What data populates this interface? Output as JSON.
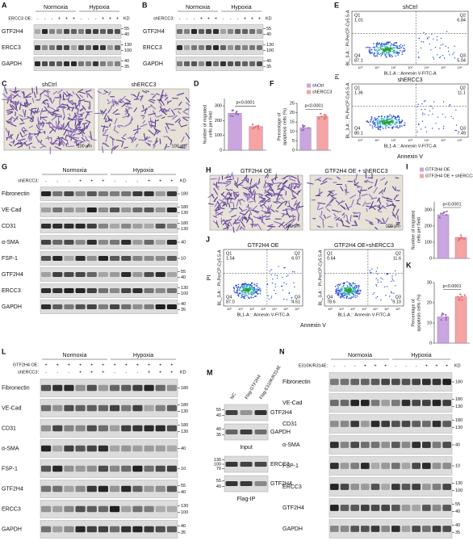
{
  "panels": {
    "A": {
      "letter": "A",
      "conditions": [
        "Normoxia",
        "Hypoxia"
      ],
      "unit": "KD",
      "treatments": [
        {
          "label": "ERCC3 OE:",
          "signs": [
            "-",
            "-",
            "-",
            "+",
            "+",
            "+",
            "-",
            "-",
            "-",
            "+",
            "+",
            "+"
          ]
        }
      ],
      "rows": [
        {
          "name": "GTF2H4",
          "markers": [
            55,
            40
          ]
        },
        {
          "name": "ERCC3",
          "markers": [
            130,
            100
          ]
        },
        {
          "name": "GAPDH",
          "markers": [
            40,
            35
          ]
        }
      ]
    },
    "B": {
      "letter": "B",
      "conditions": [
        "Normoxia",
        "Hypoxia"
      ],
      "unit": "KD",
      "treatments": [
        {
          "label": "shERCC3:",
          "signs": [
            "-",
            "-",
            "-",
            "+",
            "+",
            "+",
            "-",
            "-",
            "-",
            "+",
            "+",
            "+"
          ]
        }
      ],
      "rows": [
        {
          "name": "GTF2H4",
          "markers": [
            55,
            40
          ]
        },
        {
          "name": "ERCC3",
          "markers": [
            130,
            100
          ]
        },
        {
          "name": "GAPDH",
          "markers": [
            40,
            35
          ]
        }
      ]
    },
    "G": {
      "letter": "G",
      "conditions": [
        "Normoxia",
        "Hypoxia"
      ],
      "unit": "KD",
      "treatments": [
        {
          "label": "shERCC3:",
          "signs": [
            "-",
            "-",
            "-",
            "+",
            "+",
            "+",
            "-",
            "-",
            "-",
            "+",
            "+",
            "+"
          ]
        }
      ],
      "rows": [
        {
          "name": "Fibronectin",
          "markers": [
            180
          ]
        },
        {
          "name": "VE-Cad",
          "markers": [
            180,
            130
          ]
        },
        {
          "name": "CD31",
          "markers": [
            180,
            130
          ]
        },
        {
          "name": "α-SMA",
          "markers": [
            40
          ]
        },
        {
          "name": "FSP-1",
          "markers": [
            10
          ]
        },
        {
          "name": "GTF2H4",
          "markers": [
            55,
            40
          ]
        },
        {
          "name": "ERCC3",
          "markers": [
            130,
            100
          ]
        },
        {
          "name": "GAPDH",
          "markers": [
            40,
            35
          ]
        }
      ]
    },
    "L": {
      "letter": "L",
      "conditions": [
        "Normoxia",
        "Hypoxia"
      ],
      "unit": "KD",
      "treatments": [
        {
          "label": "GTF2H4 OE:",
          "signs": [
            "+",
            "+",
            "+",
            "+",
            "+",
            "+",
            "+",
            "+",
            "+",
            "+",
            "+",
            "+"
          ]
        },
        {
          "label": "shERCC3:",
          "signs": [
            "-",
            "-",
            "-",
            "+",
            "+",
            "+",
            "-",
            "-",
            "-",
            "+",
            "+",
            "+"
          ]
        }
      ],
      "rows": [
        {
          "name": "Fibronectin",
          "markers": [
            180
          ]
        },
        {
          "name": "VE-Cad",
          "markers": [
            180,
            130
          ]
        },
        {
          "name": "CD31",
          "markers": [
            180,
            130
          ]
        },
        {
          "name": "α-SMA",
          "markers": [
            40
          ]
        },
        {
          "name": "FSP-1",
          "markers": [
            10
          ]
        },
        {
          "name": "GTF2H4",
          "markers": [
            55,
            40
          ]
        },
        {
          "name": "ERCC3",
          "markers": [
            130,
            100
          ]
        },
        {
          "name": "GAPDH",
          "markers": [
            40,
            35
          ]
        }
      ]
    },
    "N": {
      "letter": "N",
      "conditions": [
        "Normoxia",
        "Hypoxia"
      ],
      "unit": "KD",
      "treatments": [
        {
          "label": "E310K/R314E:",
          "signs": [
            "-",
            "-",
            "-",
            "+",
            "+",
            "+",
            "-",
            "-",
            "-",
            "+",
            "+",
            "+"
          ]
        }
      ],
      "rows": [
        {
          "name": "Fibronectin",
          "markers": [
            180
          ]
        },
        {
          "name": "VE-Cad",
          "markers": [
            180,
            130
          ]
        },
        {
          "name": "CD31",
          "markers": [
            180,
            130
          ]
        },
        {
          "name": "α-SMA",
          "markers": [
            40
          ]
        },
        {
          "name": "FSP-1",
          "markers": [
            10
          ]
        },
        {
          "name": "ERCC3",
          "markers": [
            130,
            100
          ]
        },
        {
          "name": "GTF2H4",
          "markers": [
            55,
            40
          ]
        },
        {
          "name": "GAPDH",
          "markers": [
            40,
            35
          ]
        }
      ]
    }
  },
  "M": {
    "letter": "M",
    "lanes": [
      "NC",
      "Flag-GTF2H4",
      "Flag-E310K/R314E"
    ],
    "groups": [
      {
        "label": "Input",
        "rows": [
          {
            "name": "GTF2H4",
            "markers": [
              55,
              40
            ]
          },
          {
            "name": "GAPDH",
            "markers": [
              40,
              35
            ]
          }
        ]
      },
      {
        "label": "Flag-IP",
        "rows": [
          {
            "name": "ERCC3",
            "markers": [
              130,
              100,
              70
            ]
          },
          {
            "name": "GTF2H4",
            "markers": [
              55,
              40
            ]
          }
        ]
      }
    ]
  },
  "micrographs": {
    "C": {
      "letter": "C",
      "labels": [
        "shCtrl",
        "shERCC3"
      ],
      "scale": "100 μm"
    },
    "H": {
      "letter": "H",
      "labels": [
        "GTF2H4 OE",
        "GTF2H4 OE + shERCC3"
      ],
      "scale": "100 μm"
    }
  },
  "flow": {
    "axis_ticks": [
      "10⁰",
      "10¹",
      "10²",
      "10³",
      "10⁴",
      "10⁵",
      "10⁶"
    ],
    "xlabel": "BL1-A :: Annexin V-FITC-A",
    "ylabel": "BL_3-A :: PI-PerCP-Cy5.5-A",
    "outer_x": "Annexin V",
    "outer_y": "PI",
    "E": {
      "letter": "E",
      "plots": [
        {
          "title": "shCtrl",
          "q": [
            [
              "Q1",
              "1.01"
            ],
            [
              "Q2",
              "6.84"
            ],
            [
              "Q4",
              "87.1"
            ],
            [
              "Q3",
              "5.04"
            ]
          ]
        },
        {
          "title": "shERCC3",
          "q": [
            [
              "Q1",
              "1.36"
            ],
            [
              "Q2",
              "11.1"
            ],
            [
              "Q4",
              "80.1"
            ],
            [
              "Q3",
              "7.49"
            ]
          ]
        }
      ]
    },
    "J": {
      "letter": "J",
      "plots": [
        {
          "title": "GTF2H4 OE",
          "q": [
            [
              "Q1",
              "1.54"
            ],
            [
              "Q2",
              "6.97"
            ],
            [
              "Q4",
              "87.0"
            ],
            [
              "Q3",
              "4.51"
            ]
          ]
        },
        {
          "title": "GTF2H4 OE+shERCC3",
          "q": [
            [
              "Q1",
              "0.64"
            ],
            [
              "Q2",
              "11.6"
            ],
            [
              "Q4",
              "78.6"
            ],
            [
              "Q3",
              "9.10"
            ]
          ]
        }
      ]
    }
  },
  "charts": {
    "D": {
      "letter": "D",
      "type": "bar",
      "ylabel": [
        "Number of migrated",
        "cells per field"
      ],
      "pvalue": "p<0.0001",
      "categories": [
        "shCtrl",
        "shERCC3"
      ],
      "values": [
        250,
        160
      ],
      "colors": [
        "#c9a6e0",
        "#f5a3a3"
      ],
      "ylim": [
        0,
        350
      ],
      "yticks": [
        0,
        100,
        200,
        300
      ]
    },
    "F": {
      "letter": "F",
      "type": "bar",
      "ylabel": [
        "Percentage of",
        "apoptosis cells (%)"
      ],
      "pvalue": "p<0.0001",
      "categories": [
        "shCtrl",
        "shERCC3"
      ],
      "legend": true,
      "values": [
        12,
        18
      ],
      "colors": [
        "#c9a6e0",
        "#f5a3a3"
      ],
      "ylim": [
        0,
        25
      ],
      "yticks": [
        0,
        5,
        10,
        15,
        20,
        25
      ]
    },
    "I": {
      "letter": "I",
      "type": "bar",
      "ylabel": [
        "Number of migrated",
        "cells per field"
      ],
      "pvalue": "p<0.0001",
      "categories": [
        "GTF2H4 OE",
        "GTF2H4 OE + shERCC3"
      ],
      "legend": true,
      "values": [
        270,
        130
      ],
      "colors": [
        "#c9a6e0",
        "#f5a3a3"
      ],
      "ylim": [
        0,
        350
      ],
      "yticks": [
        0,
        100,
        200,
        300
      ]
    },
    "K": {
      "letter": "K",
      "type": "bar",
      "ylabel": [
        "Percentage of",
        "apoptosis cells (%)"
      ],
      "pvalue": "p<0.0001",
      "categories": [
        "GTF2H4 OE",
        "GTF2H4 OE + shERCC3"
      ],
      "values": [
        13,
        23
      ],
      "colors": [
        "#c9a6e0",
        "#f5a3a3"
      ],
      "ylim": [
        0,
        30
      ],
      "yticks": [
        0,
        10,
        20,
        30
      ]
    }
  }
}
